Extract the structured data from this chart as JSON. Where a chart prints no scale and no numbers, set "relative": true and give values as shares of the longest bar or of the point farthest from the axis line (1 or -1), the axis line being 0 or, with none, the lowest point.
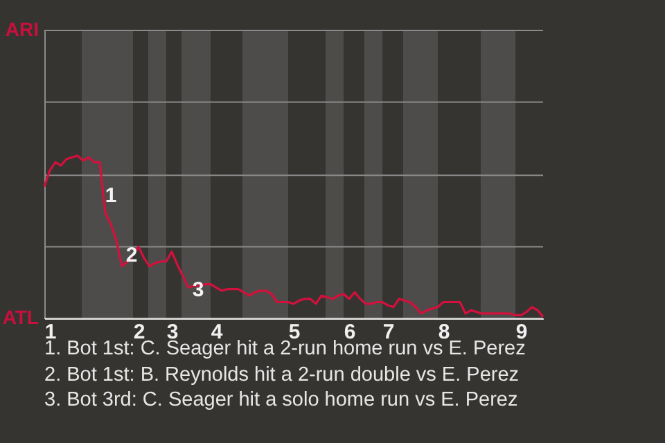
{
  "chart_data": {
    "type": "line",
    "relative": true,
    "categories": [
      null,
      "1",
      null,
      null,
      null,
      null,
      null,
      null,
      null,
      null,
      null,
      null,
      null,
      null,
      null,
      null,
      null,
      "2",
      null,
      null,
      null,
      null,
      null,
      "3",
      null,
      null,
      null,
      null,
      null,
      null,
      null,
      "4",
      null,
      null,
      null,
      null,
      null,
      null,
      null,
      null,
      null,
      null,
      null,
      null,
      null,
      "5",
      null,
      null,
      null,
      null,
      null,
      null,
      null,
      null,
      null,
      "6",
      null,
      null,
      null,
      null,
      null,
      null,
      "7",
      null,
      null,
      null,
      null,
      null,
      null,
      null,
      null,
      null,
      "8",
      null,
      null,
      null,
      null,
      null,
      null,
      null,
      null,
      null,
      null,
      null,
      null,
      null,
      "9",
      null,
      null,
      null,
      null
    ],
    "series": [
      {
        "color": "#d4103c",
        "values": [
          0.81,
          0.91,
          0.96,
          0.94,
          0.98,
          0.99,
          1,
          0.97,
          0.99,
          0.96,
          0.96,
          0.65,
          0.58,
          0.48,
          0.32,
          0.35,
          0.39,
          0.44,
          0.37,
          0.32,
          0.34,
          0.35,
          0.35,
          0.41,
          0.33,
          0.26,
          0.19,
          0.2,
          0.2,
          0.21,
          0.21,
          0.19,
          0.17,
          0.18,
          0.18,
          0.18,
          0.16,
          0.14,
          0.16,
          0.17,
          0.17,
          0.15,
          0.1,
          0.1,
          0.1,
          0.09,
          0.11,
          0.12,
          0.12,
          0.09,
          0.14,
          0.13,
          0.12,
          0.14,
          0.15,
          0.12,
          0.16,
          0.12,
          0.09,
          0.09,
          0.1,
          0.1,
          0.08,
          0.07,
          0.12,
          0.11,
          0.1,
          0.07,
          0.03,
          0.05,
          0.06,
          0.07,
          0.1,
          0.1,
          0.1,
          0.1,
          0.03,
          0.05,
          0.04,
          0.03,
          0.03,
          0.03,
          0.03,
          0.03,
          0.03,
          0.02,
          0.02,
          0.04,
          0.07,
          0.05,
          0.01
        ]
      }
    ],
    "ref_lines": [
      {
        "axis": "y",
        "value": 0,
        "label": "ATL",
        "color": "#cfcfcf"
      },
      {
        "axis": "y",
        "value": 0.44,
        "color": "#8a8a8a"
      },
      {
        "axis": "y",
        "value": 0.88,
        "color": "#8a8a8a"
      },
      {
        "axis": "y",
        "value": 1.33,
        "color": "#8a8a8a"
      },
      {
        "axis": "y",
        "value": 1.77,
        "label": "ARI",
        "color": "#8a8a8a"
      }
    ],
    "annotations": [
      "1",
      "2",
      "3",
      "1. Bot 1st: C. Seager hit a 2-run home run vs E. Perez",
      "2. Bot 1st: B. Reynolds hit a 2-run double vs E. Perez",
      "3. Bot 3rd: C. Seager hit a solo home run vs E. Perez"
    ]
  }
}
